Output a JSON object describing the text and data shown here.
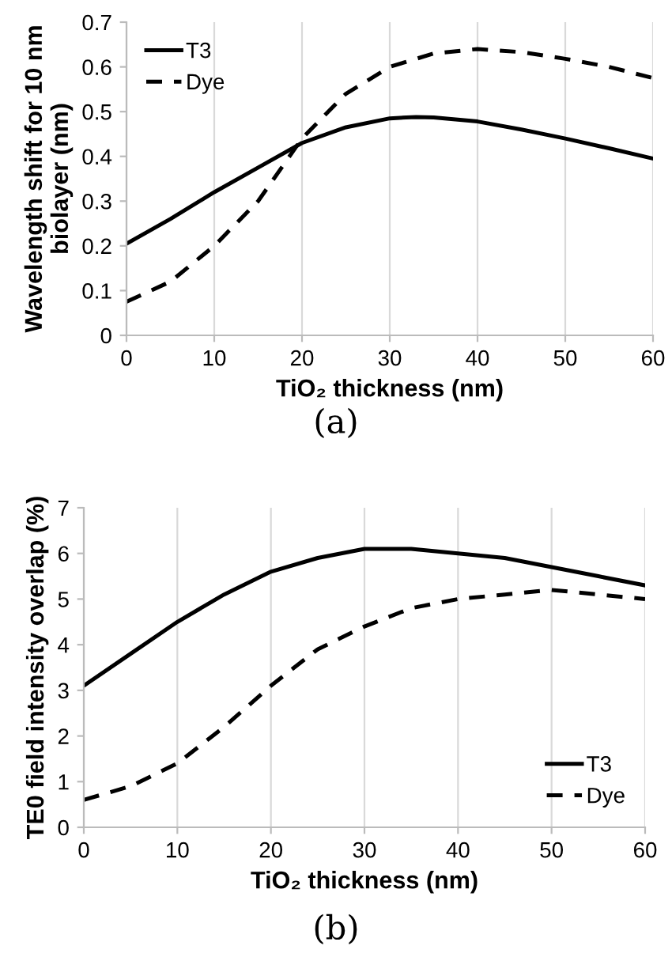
{
  "chart_data": [
    {
      "type": "line",
      "xlabel": "TiO₂ thickness (nm)",
      "ylabel": "Wavelength shift for 10 nm\nbiolayer (nm)",
      "annotations": [
        "(a)"
      ],
      "xlim": [
        0,
        60
      ],
      "xticks": [
        0,
        10,
        20,
        30,
        40,
        50,
        60
      ],
      "ylim": [
        0,
        0.7
      ],
      "yticks": [
        0,
        0.1,
        0.2,
        0.3,
        0.4,
        0.5,
        0.6,
        0.7
      ],
      "grid": "x",
      "legend": "top left",
      "series": [
        {
          "name": "T3",
          "color": "#000000",
          "line_style": "solid",
          "x": [
            0,
            5,
            10,
            15,
            20,
            25,
            30,
            33,
            35,
            40,
            45,
            50,
            55,
            60
          ],
          "values": [
            0.205,
            0.26,
            0.32,
            0.375,
            0.43,
            0.465,
            0.485,
            0.488,
            0.487,
            0.478,
            0.46,
            0.44,
            0.418,
            0.395
          ]
        },
        {
          "name": "Dye",
          "color": "#000000",
          "line_style": "dashed",
          "x": [
            0,
            5,
            10,
            15,
            20,
            25,
            30,
            35,
            40,
            45,
            50,
            55,
            60
          ],
          "values": [
            0.075,
            0.12,
            0.2,
            0.3,
            0.44,
            0.54,
            0.6,
            0.63,
            0.64,
            0.633,
            0.618,
            0.6,
            0.575
          ]
        }
      ]
    },
    {
      "type": "line",
      "xlabel": "TiO₂ thickness (nm)",
      "ylabel": "TE0 field intensity overlap (%)",
      "annotations": [
        "(b)"
      ],
      "xlim": [
        0,
        60
      ],
      "xticks": [
        0,
        10,
        20,
        30,
        40,
        50,
        60
      ],
      "ylim": [
        0,
        7
      ],
      "yticks": [
        0,
        1,
        2,
        3,
        4,
        5,
        6,
        7
      ],
      "grid": "x",
      "legend": "bottom right",
      "series": [
        {
          "name": "T3",
          "color": "#000000",
          "line_style": "solid",
          "x": [
            0,
            5,
            10,
            15,
            20,
            25,
            30,
            35,
            40,
            45,
            50,
            55,
            60
          ],
          "values": [
            3.1,
            3.8,
            4.5,
            5.1,
            5.6,
            5.9,
            6.1,
            6.1,
            6.0,
            5.9,
            5.7,
            5.5,
            5.3
          ]
        },
        {
          "name": "Dye",
          "color": "#000000",
          "line_style": "dashed",
          "x": [
            0,
            5,
            10,
            15,
            20,
            25,
            30,
            35,
            40,
            45,
            50,
            55,
            60
          ],
          "values": [
            0.6,
            0.9,
            1.4,
            2.2,
            3.1,
            3.9,
            4.4,
            4.8,
            5.0,
            5.1,
            5.2,
            5.1,
            5.0
          ]
        }
      ]
    }
  ]
}
